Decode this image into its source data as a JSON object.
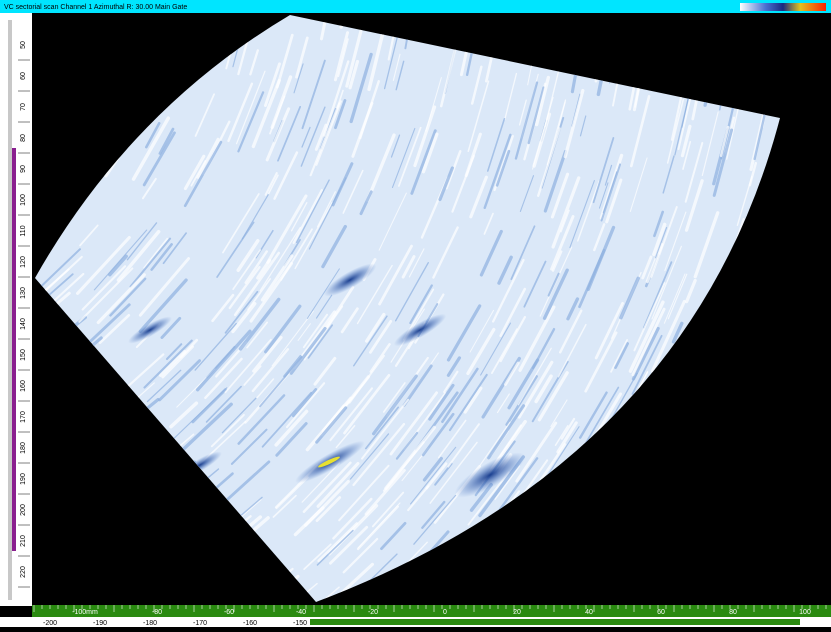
{
  "window": {
    "title": "VC sectorial scan Channel 1 Azimuthal   R: 30.00 Main Gate"
  },
  "left_ruler": {
    "labels": [
      "50",
      "60",
      "70",
      "80",
      "90",
      "100",
      "110",
      "120",
      "130",
      "140",
      "150",
      "160",
      "170",
      "180",
      "190",
      "200",
      "210",
      "220"
    ]
  },
  "bottom_ruler": {
    "labels": [
      "-100mm",
      "-80",
      "-60",
      "-40",
      "-20",
      "0",
      "20",
      "40",
      "60",
      "80",
      "100"
    ],
    "sub_labels": [
      "-200",
      "-190",
      "-180",
      "-170",
      "-160",
      "-150"
    ]
  }
}
